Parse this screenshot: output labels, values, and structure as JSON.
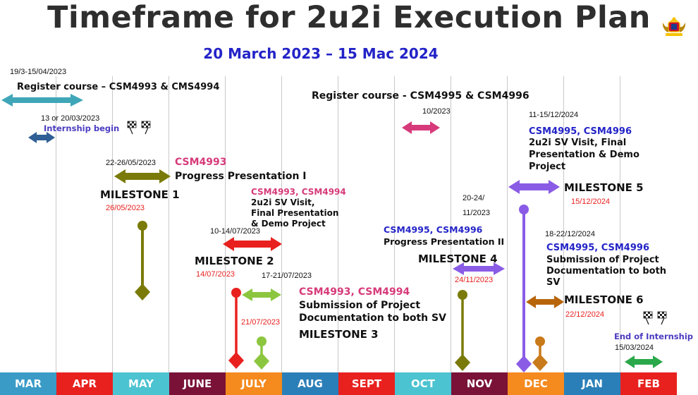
{
  "header": {
    "title": "Timeframe for 2u2i Execution Plan",
    "subtitle": "20 March 2023 – 15 Mac 2024"
  },
  "months": [
    {
      "label": "MAR",
      "color": "#3a9bc7"
    },
    {
      "label": "APR",
      "color": "#e8211f"
    },
    {
      "label": "MAY",
      "color": "#4cc3d0"
    },
    {
      "label": "JUNE",
      "color": "#7a1238"
    },
    {
      "label": "JULY",
      "color": "#f58a1e"
    },
    {
      "label": "AUG",
      "color": "#2b7fb8"
    },
    {
      "label": "SEPT",
      "color": "#e8211f"
    },
    {
      "label": "OCT",
      "color": "#4cc3d0"
    },
    {
      "label": "NOV",
      "color": "#7a1238"
    },
    {
      "label": "DEC",
      "color": "#f58a1e"
    },
    {
      "label": "JAN",
      "color": "#2b7fb8"
    },
    {
      "label": "FEB",
      "color": "#e8211f"
    }
  ],
  "events": {
    "reg1": {
      "date": "19/3-15/04/2023",
      "text": "Register course – CSM4993 & CMS4994"
    },
    "intern": {
      "date": "13 or 20/03/2023",
      "text": "Internship begin"
    },
    "reg2": {
      "text": "Register course - CSM4995 & CSM4996",
      "date": "10/2023"
    },
    "m1": {
      "date": "22-26/05/2023",
      "code": "CSM4993",
      "text": "Progress Presentation I",
      "label": "MILESTONE 1",
      "red": "26/05/2023"
    },
    "m2": {
      "code": "CSM4993, CSM4994",
      "l1": "2u2i SV Visit,",
      "l2": "Final Presentation",
      "l3": "& Demo Project",
      "date": "10-14/07/2023",
      "label": "MILESTONE 2",
      "red": "14/07/2023"
    },
    "m3": {
      "date": "17-21/07/2023",
      "red": "21/07/2023",
      "code": "CSM4993, CSM4994",
      "l1": "Submission of Project",
      "l2": "Documentation to both SV",
      "label": "MILESTONE 3"
    },
    "m4": {
      "date1": "20-24/",
      "date2": "11/2023",
      "code": "CSM4995, CSM4996",
      "text": "Progress Presentation II",
      "label": "MILESTONE 4",
      "red": "24/11/2023"
    },
    "m5": {
      "date": "11-15/12/2024",
      "code": "CSM4995, CSM4996",
      "l1": "2u2i  SV  Visit,  Final",
      "l2": "Presentation  &  Demo",
      "l3": "Project",
      "label": "MILESTONE 5",
      "red": "15/12/2024"
    },
    "m6": {
      "date": "18-22/12/2024",
      "code": "CSM4995, CSM4996",
      "l1": "Submission of Project",
      "l2": "Documentation to both",
      "l3": "SV",
      "label": "MILESTONE 6",
      "red": "22/12/2024"
    },
    "endi": {
      "text": "End of Internship",
      "date": "15/03/2024"
    }
  },
  "icons": [
    "coat-of-arms-icon",
    "checkered-flag-icon"
  ]
}
